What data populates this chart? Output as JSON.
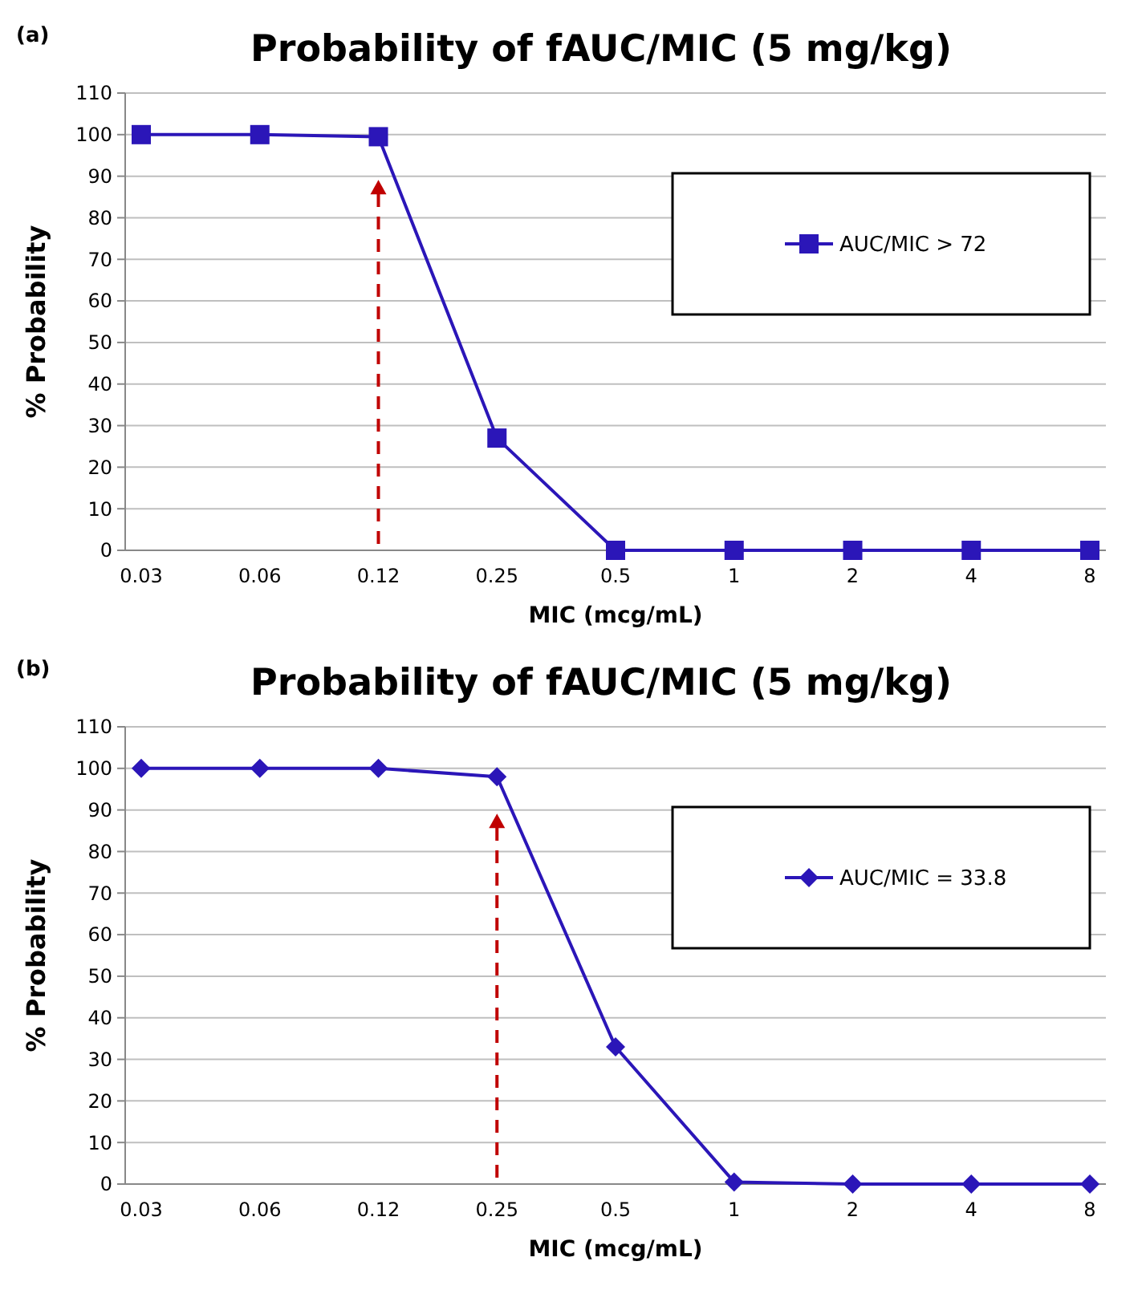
{
  "chart_data": [
    {
      "type": "line",
      "title": "Probability of fAUC/MIC (5 mg/kg)",
      "xlabel": "MIC (mcg/mL)",
      "ylabel": "% Probability",
      "annotations": [
        "(a)"
      ],
      "categories": [
        "0.03",
        "0.06",
        "0.12",
        "0.25",
        "0.5",
        "1",
        "2",
        "4",
        "8"
      ],
      "series": [
        {
          "name": "AUC/MIC > 72",
          "color": "#2b16b8",
          "values": [
            100,
            100,
            99.5,
            27,
            0,
            0,
            0,
            0,
            0
          ]
        }
      ],
      "ylim": [
        0,
        110
      ],
      "yticks": [
        0,
        10,
        20,
        30,
        40,
        50,
        60,
        70,
        80,
        90,
        100,
        110
      ],
      "grid": "y",
      "legend": "right",
      "marker": "square",
      "line_style": "solid",
      "ref_lines": [
        {
          "axis": "x",
          "value": "0.12",
          "color": "#c00000",
          "line_style": "dashed"
        }
      ]
    },
    {
      "type": "line",
      "title": "Probability of fAUC/MIC (5 mg/kg)",
      "xlabel": "MIC (mcg/mL)",
      "ylabel": "% Probability",
      "annotations": [
        "(b)"
      ],
      "categories": [
        "0.03",
        "0.06",
        "0.12",
        "0.25",
        "0.5",
        "1",
        "2",
        "4",
        "8"
      ],
      "series": [
        {
          "name": "AUC/MIC = 33.8",
          "color": "#2b16b8",
          "values": [
            100,
            100,
            100,
            98,
            33,
            0.5,
            0,
            0,
            0
          ]
        }
      ],
      "ylim": [
        0,
        110
      ],
      "yticks": [
        0,
        10,
        20,
        30,
        40,
        50,
        60,
        70,
        80,
        90,
        100,
        110
      ],
      "grid": "y",
      "legend": "right",
      "marker": "diamond",
      "line_style": "solid",
      "ref_lines": [
        {
          "axis": "x",
          "value": "0.25",
          "color": "#c00000",
          "line_style": "dashed"
        }
      ]
    }
  ]
}
